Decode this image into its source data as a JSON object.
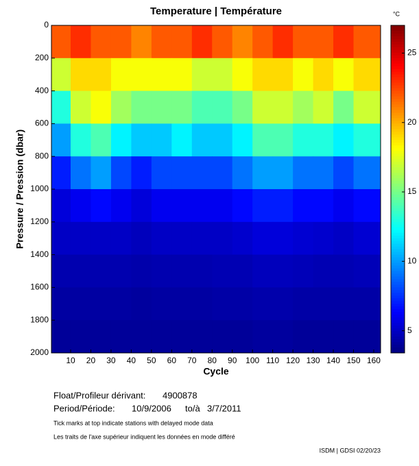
{
  "chart_data": {
    "type": "heatmap",
    "title": "Temperature | Température",
    "x_label": "Cycle",
    "y_label": "Pressure / Pression (dbar)",
    "colorbar_label": "°C",
    "x": [
      5,
      15,
      25,
      35,
      45,
      55,
      65,
      75,
      85,
      95,
      105,
      115,
      125,
      135,
      145,
      155
    ],
    "y": [
      100,
      300,
      500,
      700,
      900,
      1100,
      1300,
      1500,
      1700,
      1900
    ],
    "z": [
      [
        22,
        23,
        22,
        22,
        21,
        22,
        22,
        23,
        22,
        21,
        22,
        23,
        22,
        22,
        23,
        22
      ],
      [
        17,
        19,
        19,
        18,
        18,
        18,
        18,
        17,
        17,
        18,
        19,
        19,
        18,
        19,
        18,
        19
      ],
      [
        13,
        17,
        18,
        16,
        15,
        15,
        15,
        14,
        14,
        15,
        17,
        17,
        16,
        17,
        15,
        17
      ],
      [
        10,
        13,
        14,
        12,
        11,
        11,
        12,
        11,
        11,
        12,
        14,
        14,
        13,
        13,
        12,
        13
      ],
      [
        7,
        9,
        10,
        8,
        7,
        8,
        8,
        8,
        8,
        9,
        10,
        10,
        9,
        9,
        8,
        9
      ],
      [
        5.5,
        6,
        6.5,
        6,
        5.5,
        6,
        6,
        6,
        6,
        6.5,
        7,
        7,
        6.5,
        6.5,
        6,
        6.5
      ],
      [
        5,
        5,
        5,
        5,
        4.8,
        5,
        5,
        5,
        5,
        5.2,
        5.5,
        5.5,
        5.3,
        5.2,
        5,
        5.3
      ],
      [
        4.5,
        4.5,
        4.5,
        4.5,
        4.4,
        4.5,
        4.5,
        4.5,
        4.6,
        4.6,
        4.8,
        4.8,
        4.7,
        4.6,
        4.6,
        4.7
      ],
      [
        4.2,
        4.2,
        4.2,
        4.2,
        4.1,
        4.2,
        4.2,
        4.2,
        4.3,
        4.3,
        4.4,
        4.4,
        4.3,
        4.3,
        4.3,
        4.3
      ],
      [
        4,
        4,
        4,
        4,
        4,
        4,
        4,
        4,
        4,
        4,
        4.1,
        4.1,
        4,
        4,
        4,
        4
      ]
    ],
    "xlim": [
      0.5,
      163.4
    ],
    "xticks": [
      10,
      20,
      30,
      40,
      50,
      60,
      70,
      80,
      90,
      100,
      110,
      120,
      130,
      140,
      150,
      160
    ],
    "ylim": [
      2000,
      0
    ],
    "yticks": [
      0,
      200,
      400,
      600,
      800,
      1000,
      1200,
      1400,
      1600,
      1800,
      2000
    ],
    "clim": [
      3.4,
      27
    ],
    "cticks": [
      5,
      10,
      15,
      20,
      25
    ],
    "colormap": "jet"
  },
  "info": {
    "float_label": "Float/Profileur dérivant:",
    "float_id": "4900878",
    "period_label": "Period/Période:",
    "start": "10/9/2006",
    "to": "to/à",
    "end": "3/7/2011",
    "note_en": "Tick marks at top indicate stations with delayed mode data",
    "note_fr": "Les traits de l'axe supérieur indiquent les données en mode différé",
    "footer": "ISDM | GDSI  02/20/23"
  }
}
